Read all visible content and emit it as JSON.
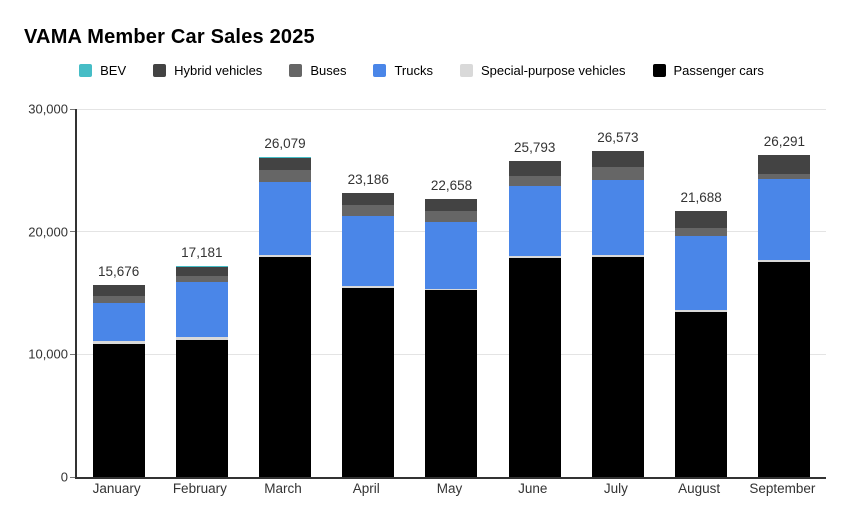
{
  "title": "VAMA Member Car Sales 2025",
  "chart_data": {
    "type": "bar",
    "stacked": true,
    "title": "VAMA Member Car Sales 2025",
    "legend_position": "top",
    "grid": true,
    "background": "#ffffff",
    "categories": [
      "January",
      "February",
      "March",
      "April",
      "May",
      "June",
      "July",
      "August",
      "September"
    ],
    "totals": [
      15676,
      17181,
      26079,
      23186,
      22658,
      25793,
      26573,
      21688,
      26291
    ],
    "series": [
      {
        "name": "Passenger cars",
        "color": "#000000",
        "values": [
          10880,
          11210,
          17900,
          15420,
          15210,
          17880,
          17910,
          13470,
          17530
        ]
      },
      {
        "name": "Special-purpose vehicles",
        "color": "#d9d9d9",
        "values": [
          190,
          220,
          215,
          140,
          140,
          100,
          185,
          140,
          140
        ]
      },
      {
        "name": "Trucks",
        "color": "#4a86e8",
        "values": [
          3130,
          4430,
          5950,
          5680,
          5460,
          5760,
          6130,
          6030,
          6660
        ]
      },
      {
        "name": "Buses",
        "color": "#666666",
        "values": [
          550,
          550,
          960,
          905,
          880,
          820,
          1035,
          665,
          360
        ]
      },
      {
        "name": "Hybrid vehicles",
        "color": "#434343",
        "values": [
          900,
          740,
          1020,
          1010,
          940,
          1200,
          1280,
          1350,
          1570
        ]
      },
      {
        "name": "BEV",
        "color": "#46bdc6",
        "values": [
          26,
          31,
          34,
          31,
          28,
          33,
          33,
          33,
          31
        ]
      }
    ],
    "legend": [
      {
        "label": "BEV",
        "color": "#46bdc6"
      },
      {
        "label": "Hybrid vehicles",
        "color": "#434343"
      },
      {
        "label": "Buses",
        "color": "#666666"
      },
      {
        "label": "Trucks",
        "color": "#4a86e8"
      },
      {
        "label": "Special-purpose vehicles",
        "color": "#d9d9d9"
      },
      {
        "label": "Passenger cars",
        "color": "#000000"
      }
    ],
    "y_axis": {
      "min": 0,
      "max": 30000,
      "tick_interval": 10000,
      "tick_labels": [
        "0",
        "10,000",
        "20,000",
        "30,000"
      ]
    }
  }
}
